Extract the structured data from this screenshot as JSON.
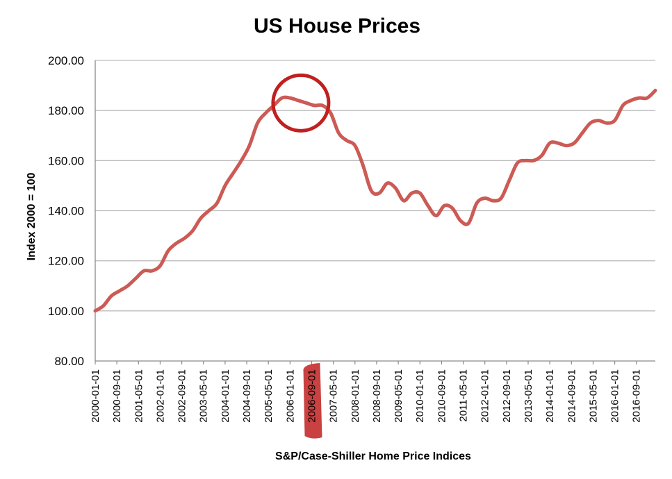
{
  "chart_data": {
    "type": "line",
    "title": "US House Prices",
    "xlabel": "S&P/Case-Shiller Home Price Indices",
    "ylabel": "Index 2000 = 100",
    "ylim": [
      80,
      200
    ],
    "yticks": [
      "80.00",
      "100.00",
      "120.00",
      "140.00",
      "160.00",
      "180.00",
      "200.00"
    ],
    "yticks_values": [
      80,
      100,
      120,
      140,
      160,
      180,
      200
    ],
    "xlim": [
      "2000-01-01",
      "2017-04-01"
    ],
    "xtick_labels": [
      "2000-01-01",
      "2000-09-01",
      "2001-05-01",
      "2002-01-01",
      "2002-09-01",
      "2003-05-01",
      "2004-01-01",
      "2004-09-01",
      "2005-05-01",
      "2006-01-01",
      "2006-09-01",
      "2007-05-01",
      "2008-01-01",
      "2008-09-01",
      "2009-05-01",
      "2010-01-01",
      "2010-09-01",
      "2011-05-01",
      "2012-01-01",
      "2012-09-01",
      "2013-05-01",
      "2014-01-01",
      "2014-09-01",
      "2015-05-01",
      "2016-01-01",
      "2016-09-01"
    ],
    "highlighted_tick": "2006-09-01",
    "grid": true,
    "line_color": "#cc5a55",
    "highlight_color": "#c0201f",
    "peak_circle": {
      "x": "2006-05-01",
      "y": 183
    },
    "series": [
      {
        "x": [
          "2000-01-01",
          "2000-04-01",
          "2000-07-01",
          "2000-10-01",
          "2001-01-01",
          "2001-04-01",
          "2001-07-01",
          "2001-10-01",
          "2002-01-01",
          "2002-04-01",
          "2002-07-01",
          "2002-10-01",
          "2003-01-01",
          "2003-04-01",
          "2003-07-01",
          "2003-10-01",
          "2004-01-01",
          "2004-04-01",
          "2004-07-01",
          "2004-10-01",
          "2005-01-01",
          "2005-04-01",
          "2005-07-01",
          "2005-10-01",
          "2006-01-01",
          "2006-04-01",
          "2006-07-01",
          "2006-10-01",
          "2007-01-01",
          "2007-04-01",
          "2007-07-01",
          "2007-10-01",
          "2008-01-01",
          "2008-04-01",
          "2008-07-01",
          "2008-10-01",
          "2009-01-01",
          "2009-04-01",
          "2009-07-01",
          "2009-10-01",
          "2010-01-01",
          "2010-04-01",
          "2010-07-01",
          "2010-10-01",
          "2011-01-01",
          "2011-04-01",
          "2011-07-01",
          "2011-10-01",
          "2012-01-01",
          "2012-04-01",
          "2012-07-01",
          "2012-10-01",
          "2013-01-01",
          "2013-04-01",
          "2013-07-01",
          "2013-10-01",
          "2014-01-01",
          "2014-04-01",
          "2014-07-01",
          "2014-10-01",
          "2015-01-01",
          "2015-04-01",
          "2015-07-01",
          "2015-10-01",
          "2016-01-01",
          "2016-04-01",
          "2016-07-01",
          "2016-10-01",
          "2017-01-01",
          "2017-04-01"
        ],
        "values": [
          100,
          102,
          106,
          108,
          110,
          113,
          116,
          116,
          118,
          124,
          127,
          129,
          132,
          137,
          140,
          143,
          150,
          155,
          160,
          166,
          175,
          179,
          182,
          185,
          185,
          184,
          183,
          182,
          182,
          179,
          171,
          168,
          166,
          158,
          148,
          147,
          151,
          149,
          144,
          147,
          147,
          142,
          138,
          142,
          141,
          136,
          135,
          143,
          145,
          144,
          145,
          152,
          159,
          160,
          160,
          162,
          167,
          167,
          166,
          167,
          171,
          175,
          176,
          175,
          176,
          182,
          184,
          185,
          185,
          188
        ]
      }
    ]
  }
}
